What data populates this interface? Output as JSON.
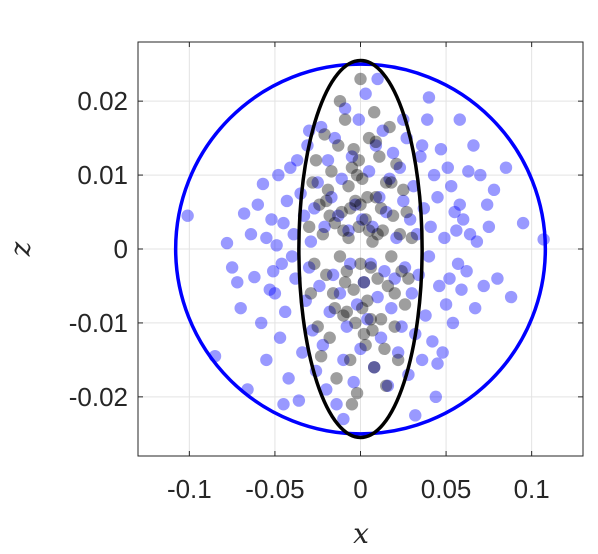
{
  "chart_data": {
    "type": "scatter",
    "title": "",
    "xlabel": "x",
    "ylabel": "z",
    "xlim": [
      -0.13,
      0.13
    ],
    "ylim": [
      -0.028,
      0.028
    ],
    "xticks": [
      -0.1,
      -0.05,
      0,
      0.05,
      0.1
    ],
    "xtick_labels": [
      "-0.1",
      "-0.05",
      "0",
      "0.05",
      "0.1"
    ],
    "yticks": [
      -0.02,
      -0.01,
      0,
      0.01,
      0.02
    ],
    "ytick_labels": [
      "-0.02",
      "-0.01",
      "0",
      "0.01",
      "0.02"
    ],
    "grid": true,
    "series": [
      {
        "color": "#0000ff",
        "opacity": 0.4,
        "points": [
          [
            -0.101,
            0.0045
          ],
          [
            -0.085,
            -0.0145
          ],
          [
            -0.078,
            0.0008
          ],
          [
            -0.075,
            -0.0025
          ],
          [
            -0.072,
            -0.0045
          ],
          [
            -0.07,
            -0.008
          ],
          [
            -0.068,
            0.0048
          ],
          [
            -0.066,
            -0.019
          ],
          [
            -0.064,
            0.002
          ],
          [
            -0.062,
            -0.0038
          ],
          [
            -0.06,
            0.006
          ],
          [
            -0.058,
            -0.01
          ],
          [
            -0.057,
            0.0088
          ],
          [
            -0.055,
            -0.015
          ],
          [
            -0.055,
            0.0015
          ],
          [
            -0.053,
            -0.0055
          ],
          [
            -0.052,
            0.004
          ],
          [
            -0.051,
            -0.003
          ],
          [
            -0.05,
            -0.006
          ],
          [
            -0.049,
            0.0005
          ],
          [
            -0.048,
            0.01
          ],
          [
            -0.047,
            -0.012
          ],
          [
            -0.046,
            -0.002
          ],
          [
            -0.045,
            0.0035
          ],
          [
            -0.044,
            -0.0085
          ],
          [
            -0.043,
            0.0065
          ],
          [
            -0.042,
            -0.0175
          ],
          [
            -0.041,
            0.011
          ],
          [
            -0.04,
            -0.001
          ],
          [
            -0.039,
            0.002
          ],
          [
            -0.038,
            -0.004
          ],
          [
            -0.037,
            0.012
          ],
          [
            -0.036,
            -0.0205
          ],
          [
            -0.035,
            0.0075
          ],
          [
            -0.034,
            -0.014
          ],
          [
            -0.033,
            0.0045
          ],
          [
            -0.032,
            -0.007
          ],
          [
            -0.031,
            0.014
          ],
          [
            -0.03,
            -0.0025
          ],
          [
            -0.029,
            0.001
          ],
          [
            -0.028,
            -0.011
          ],
          [
            -0.027,
            0.0055
          ],
          [
            -0.026,
            -0.0165
          ],
          [
            -0.025,
            0.009
          ],
          [
            -0.024,
            -0.005
          ],
          [
            -0.023,
            0.0165
          ],
          [
            -0.022,
            -0.013
          ],
          [
            -0.021,
            0.003
          ],
          [
            -0.02,
            -0.019
          ],
          [
            -0.019,
            0.012
          ],
          [
            -0.018,
            -0.0085
          ],
          [
            -0.017,
            0.007
          ],
          [
            -0.016,
            -0.0035
          ],
          [
            -0.015,
            0.015
          ],
          [
            -0.014,
            -0.021
          ],
          [
            -0.013,
            0.0045
          ],
          [
            -0.012,
            -0.006
          ],
          [
            -0.011,
            0.0095
          ],
          [
            -0.01,
            -0.015
          ],
          [
            -0.009,
            0.019
          ],
          [
            -0.008,
            -0.0105
          ],
          [
            -0.007,
            0.0025
          ],
          [
            -0.006,
            -0.002
          ],
          [
            -0.005,
            0.0125
          ],
          [
            -0.004,
            -0.018
          ],
          [
            -0.003,
            0.006
          ],
          [
            -0.002,
            -0.0075
          ],
          [
            -0.001,
            0.0175
          ],
          [
            0.0,
            -0.0135
          ],
          [
            0.001,
            0.004
          ],
          [
            0.002,
            -0.0045
          ],
          [
            0.003,
            0.021
          ],
          [
            0.004,
            -0.0095
          ],
          [
            0.005,
            0.0105
          ],
          [
            0.006,
            -0.002
          ],
          [
            0.007,
            0.003
          ],
          [
            0.008,
            -0.016
          ],
          [
            0.009,
            0.014
          ],
          [
            0.01,
            -0.0065
          ],
          [
            0.011,
            0.007
          ],
          [
            0.012,
            -0.012
          ],
          [
            0.013,
            0.016
          ],
          [
            0.014,
            -0.003
          ],
          [
            0.015,
            0.005
          ],
          [
            0.016,
            -0.0185
          ],
          [
            0.017,
            0.0095
          ],
          [
            0.018,
            -0.008
          ],
          [
            0.019,
            0.013
          ],
          [
            0.02,
            -0.004
          ],
          [
            0.021,
            0.0015
          ],
          [
            0.022,
            -0.014
          ],
          [
            0.023,
            0.011
          ],
          [
            0.024,
            -0.0105
          ],
          [
            0.025,
            0.0065
          ],
          [
            0.026,
            -0.0025
          ],
          [
            0.027,
            0.015
          ],
          [
            0.028,
            -0.017
          ],
          [
            0.029,
            0.004
          ],
          [
            0.03,
            -0.006
          ],
          [
            0.031,
            0.0085
          ],
          [
            0.032,
            -0.0115
          ],
          [
            0.033,
            0.002
          ],
          [
            0.034,
            -0.0035
          ],
          [
            0.035,
            0.0125
          ],
          [
            0.036,
            -0.015
          ],
          [
            0.037,
            0.0055
          ],
          [
            0.038,
            -0.009
          ],
          [
            0.039,
            0.0175
          ],
          [
            0.04,
            -0.001
          ],
          [
            0.041,
            0.003
          ],
          [
            0.042,
            -0.0125
          ],
          [
            0.043,
            0.01
          ],
          [
            0.044,
            -0.02
          ],
          [
            0.045,
            0.007
          ],
          [
            0.046,
            -0.005
          ],
          [
            0.047,
            0.0135
          ],
          [
            0.048,
            -0.014
          ],
          [
            0.049,
            0.0015
          ],
          [
            0.05,
            -0.0075
          ],
          [
            0.051,
            0.011
          ],
          [
            0.052,
            -0.004
          ],
          [
            0.053,
            0.0085
          ],
          [
            0.054,
            -0.01
          ],
          [
            0.055,
            0.005
          ],
          [
            0.056,
            0.0025
          ],
          [
            0.057,
            -0.002
          ],
          [
            0.058,
            0.006
          ],
          [
            0.059,
            -0.0055
          ],
          [
            0.06,
            0.004
          ],
          [
            0.062,
            -0.003
          ],
          [
            0.063,
            0.0105
          ],
          [
            0.064,
            0.002
          ],
          [
            0.066,
            0.014
          ],
          [
            0.067,
            -0.008
          ],
          [
            0.068,
            0.001
          ],
          [
            0.07,
            0.01
          ],
          [
            0.072,
            -0.005
          ],
          [
            0.074,
            0.006
          ],
          [
            0.075,
            0.003
          ],
          [
            0.078,
            0.008
          ],
          [
            0.08,
            -0.004
          ],
          [
            0.085,
            0.011
          ],
          [
            0.088,
            -0.0065
          ],
          [
            0.095,
            0.0035
          ],
          [
            0.107,
            0.0013
          ],
          [
            0.04,
            0.0205
          ],
          [
            0.058,
            0.0175
          ],
          [
            -0.03,
            0.016
          ],
          [
            0.025,
            0.0175
          ],
          [
            0.032,
            -0.0225
          ],
          [
            0.045,
            -0.0155
          ],
          [
            -0.045,
            -0.021
          ],
          [
            0.01,
            0.023
          ],
          [
            -0.01,
            -0.023
          ],
          [
            0.036,
            0.014
          ]
        ]
      },
      {
        "color": "#000000",
        "opacity": 0.38,
        "points": [
          [
            -0.03,
            0.003
          ],
          [
            -0.029,
            -0.006
          ],
          [
            -0.028,
            0.009
          ],
          [
            -0.027,
            -0.002
          ],
          [
            -0.026,
            0.012
          ],
          [
            -0.025,
            -0.0105
          ],
          [
            -0.024,
            0.006
          ],
          [
            -0.023,
            -0.0145
          ],
          [
            -0.022,
            0.002
          ],
          [
            -0.021,
            0.0155
          ],
          [
            -0.02,
            -0.0035
          ],
          [
            -0.019,
            0.008
          ],
          [
            -0.018,
            -0.012
          ],
          [
            -0.017,
            0.0105
          ],
          [
            -0.016,
            -0.006
          ],
          [
            -0.015,
            0.0035
          ],
          [
            -0.014,
            -0.0175
          ],
          [
            -0.013,
            0.014
          ],
          [
            -0.012,
            -0.001
          ],
          [
            -0.011,
            0.005
          ],
          [
            -0.01,
            -0.009
          ],
          [
            -0.009,
            0.0175
          ],
          [
            -0.008,
            -0.003
          ],
          [
            -0.007,
            0.0015
          ],
          [
            -0.006,
            -0.015
          ],
          [
            -0.005,
            0.011
          ],
          [
            -0.004,
            -0.0055
          ],
          [
            -0.003,
            0.0065
          ],
          [
            -0.002,
            -0.0195
          ],
          [
            -0.001,
            0.003
          ],
          [
            0.0,
            -0.002
          ],
          [
            0.001,
            0.0095
          ],
          [
            0.002,
            -0.0115
          ],
          [
            0.003,
            0.004
          ],
          [
            0.004,
            -0.007
          ],
          [
            0.005,
            0.015
          ],
          [
            0.006,
            -0.0025
          ],
          [
            0.007,
            0.001
          ],
          [
            0.008,
            -0.016
          ],
          [
            0.009,
            0.007
          ],
          [
            0.01,
            -0.004
          ],
          [
            0.011,
            0.0125
          ],
          [
            0.012,
            -0.0095
          ],
          [
            0.013,
            0.0025
          ],
          [
            0.014,
            -0.0135
          ],
          [
            0.015,
            0.009
          ],
          [
            0.016,
            -0.005
          ],
          [
            0.017,
            0.0165
          ],
          [
            0.018,
            -0.001
          ],
          [
            0.019,
            0.0045
          ],
          [
            0.02,
            -0.0105
          ],
          [
            0.021,
            0.0115
          ],
          [
            0.022,
            -0.015
          ],
          [
            0.023,
            0.002
          ],
          [
            0.024,
            -0.003
          ],
          [
            0.025,
            0.008
          ],
          [
            0.026,
            -0.0075
          ],
          [
            0.027,
            0.005
          ],
          [
            0.028,
            -0.004
          ],
          [
            0.03,
            0.0015
          ],
          [
            -0.012,
            0.02
          ],
          [
            0.008,
            0.0185
          ],
          [
            -0.005,
            -0.021
          ],
          [
            0.015,
            -0.0185
          ],
          [
            0.0,
            0.023
          ],
          [
            -0.018,
            0.0045
          ],
          [
            0.012,
            0.0055
          ],
          [
            -0.008,
            -0.0085
          ],
          [
            0.004,
            0.007
          ],
          [
            -0.002,
            0.01
          ],
          [
            0.006,
            -0.0095
          ],
          [
            -0.01,
            0.0025
          ],
          [
            0.002,
            -0.0045
          ],
          [
            -0.004,
            0.0135
          ],
          [
            0.01,
            0.002
          ],
          [
            -0.015,
            -0.008
          ],
          [
            0.018,
            0.009
          ],
          [
            -0.02,
            0.0065
          ],
          [
            0.02,
            -0.006
          ],
          [
            -0.006,
            0.0055
          ],
          [
            0.0,
            0.006
          ],
          [
            0.001,
            -0.008
          ],
          [
            -0.001,
            0.012
          ],
          [
            0.003,
            -0.013
          ],
          [
            -0.003,
            -0.01
          ],
          [
            0.005,
            0.0025
          ],
          [
            -0.007,
            0.0085
          ],
          [
            0.007,
            -0.011
          ],
          [
            -0.009,
            -0.0045
          ],
          [
            0.009,
            0.0145
          ]
        ]
      }
    ],
    "ellipses": [
      {
        "cx": 0,
        "cy": 0,
        "rx": 0.108,
        "ry": 0.025,
        "color": "#0000ff"
      },
      {
        "cx": 0,
        "cy": 0,
        "rx": 0.036,
        "ry": 0.0255,
        "color": "#000000"
      }
    ]
  }
}
